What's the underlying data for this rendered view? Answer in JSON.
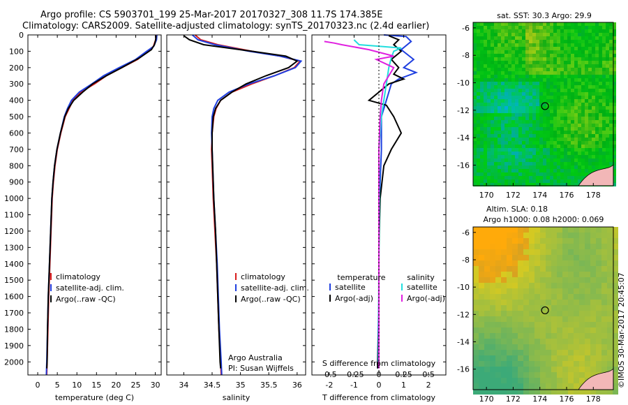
{
  "header": {
    "line1": "Argo profile: CS 5903701_199 25-Mar-2017 20170327_308 11.7S 174.385E",
    "line2": "Climatology: CARS2009. Satellite-adjusted climatology: synTS_20170323.nc (2.4d earlier)"
  },
  "stamp": "©IMOS 30-Mar-2017 20:45:07",
  "colors": {
    "climatology": "#d81b1b",
    "satellite": "#1f3fe0",
    "argo": "#000000",
    "sal_satellite": "#22dede",
    "sal_argo": "#e020e0"
  },
  "chart_data": [
    {
      "type": "line",
      "xlabel": "temperature (deg C)",
      "ylabel": "",
      "xlim": [
        -2.5,
        31.5
      ],
      "ylim": [
        2080,
        0
      ],
      "xticks": [
        0,
        5,
        10,
        15,
        20,
        25,
        30
      ],
      "yticks": [
        0,
        100,
        200,
        300,
        400,
        500,
        600,
        700,
        800,
        900,
        1000,
        1100,
        1200,
        1300,
        1400,
        1500,
        1600,
        1700,
        1800,
        1900,
        2000
      ],
      "legend": [
        "climatology",
        "satellite-adj. clim.",
        "Argo(..raw -QC)"
      ],
      "legend_position": "bottom-center",
      "series": [
        {
          "name": "climatology",
          "color": "#d81b1b",
          "points": [
            [
              30.2,
              0
            ],
            [
              30.1,
              30
            ],
            [
              29.5,
              70
            ],
            [
              28,
              100
            ],
            [
              25.5,
              150
            ],
            [
              21.5,
              200
            ],
            [
              17.5,
              250
            ],
            [
              14.5,
              300
            ],
            [
              11,
              350
            ],
            [
              9,
              400
            ],
            [
              8,
              450
            ],
            [
              7,
              500
            ],
            [
              5.9,
              600
            ],
            [
              5,
              700
            ],
            [
              4.4,
              800
            ],
            [
              4,
              900
            ],
            [
              3.7,
              1000
            ],
            [
              3.4,
              1200
            ],
            [
              3.1,
              1400
            ],
            [
              2.8,
              1600
            ],
            [
              2.6,
              1800
            ],
            [
              2.4,
              2000
            ],
            [
              2.3,
              2080
            ]
          ]
        },
        {
          "name": "satellite-adj. clim.",
          "color": "#1f3fe0",
          "points": [
            [
              30.4,
              0
            ],
            [
              30.3,
              30
            ],
            [
              29.6,
              70
            ],
            [
              27.8,
              100
            ],
            [
              25,
              150
            ],
            [
              20.8,
              200
            ],
            [
              16.8,
              250
            ],
            [
              13.8,
              300
            ],
            [
              10.6,
              350
            ],
            [
              8.6,
              400
            ],
            [
              7.6,
              450
            ],
            [
              6.8,
              500
            ],
            [
              5.8,
              600
            ],
            [
              4.9,
              700
            ],
            [
              4.3,
              800
            ],
            [
              3.9,
              900
            ],
            [
              3.6,
              1000
            ],
            [
              3.3,
              1200
            ],
            [
              3,
              1400
            ],
            [
              2.7,
              1600
            ],
            [
              2.5,
              1800
            ],
            [
              2.3,
              2000
            ],
            [
              2.2,
              2080
            ]
          ]
        },
        {
          "name": "Argo(..raw -QC)",
          "color": "#000000",
          "points": [
            [
              30.2,
              5
            ],
            [
              30.1,
              30
            ],
            [
              29.8,
              60
            ],
            [
              29,
              90
            ],
            [
              26,
              140
            ],
            [
              21.5,
              200
            ],
            [
              17.5,
              250
            ],
            [
              14,
              300
            ],
            [
              11.5,
              350
            ],
            [
              9.2,
              400
            ],
            [
              7.8,
              450
            ],
            [
              6.9,
              500
            ],
            [
              5.8,
              600
            ],
            [
              4.9,
              700
            ],
            [
              4.3,
              800
            ],
            [
              3.9,
              900
            ],
            [
              3.6,
              1000
            ],
            [
              3.3,
              1200
            ],
            [
              3,
              1400
            ],
            [
              2.7,
              1600
            ],
            [
              2.5,
              1800
            ],
            [
              2.4,
              2000
            ],
            [
              2.3,
              2040
            ]
          ]
        }
      ]
    },
    {
      "type": "line",
      "xlabel": "salinity",
      "ylabel": "",
      "xlim": [
        33.7,
        36.15
      ],
      "ylim": [
        2080,
        0
      ],
      "xticks": [
        34,
        34.5,
        35,
        35.5,
        36
      ],
      "xticklabels": [
        "34",
        "34.5",
        "35",
        "35.5",
        "36"
      ],
      "legend": [
        "climatology",
        "satellite-adj. clim.",
        "Argo(..raw -QC)"
      ],
      "legend_position": "bottom-right",
      "annotation": [
        "Argo Australia",
        "PI: Susan Wijffels"
      ],
      "series": [
        {
          "name": "climatology",
          "color": "#d81b1b",
          "points": [
            [
              34.2,
              0
            ],
            [
              34.3,
              30
            ],
            [
              34.6,
              60
            ],
            [
              35.2,
              100
            ],
            [
              35.7,
              130
            ],
            [
              36.05,
              160
            ],
            [
              35.95,
              200
            ],
            [
              35.6,
              250
            ],
            [
              35.2,
              300
            ],
            [
              34.85,
              350
            ],
            [
              34.65,
              400
            ],
            [
              34.57,
              450
            ],
            [
              34.53,
              500
            ],
            [
              34.5,
              600
            ],
            [
              34.49,
              700
            ],
            [
              34.5,
              800
            ],
            [
              34.52,
              1000
            ],
            [
              34.55,
              1200
            ],
            [
              34.58,
              1400
            ],
            [
              34.6,
              1600
            ],
            [
              34.62,
              1800
            ],
            [
              34.65,
              2000
            ],
            [
              34.66,
              2080
            ]
          ]
        },
        {
          "name": "satellite-adj. clim.",
          "color": "#1f3fe0",
          "points": [
            [
              34.15,
              0
            ],
            [
              34.25,
              30
            ],
            [
              34.55,
              60
            ],
            [
              35.15,
              100
            ],
            [
              35.7,
              130
            ],
            [
              36.07,
              160
            ],
            [
              35.97,
              200
            ],
            [
              35.6,
              250
            ],
            [
              35.15,
              300
            ],
            [
              34.8,
              350
            ],
            [
              34.6,
              400
            ],
            [
              34.53,
              450
            ],
            [
              34.5,
              500
            ],
            [
              34.49,
              600
            ],
            [
              34.5,
              700
            ],
            [
              34.51,
              800
            ],
            [
              34.53,
              1000
            ],
            [
              34.56,
              1200
            ],
            [
              34.59,
              1400
            ],
            [
              34.61,
              1600
            ],
            [
              34.63,
              1800
            ],
            [
              34.66,
              2000
            ],
            [
              34.67,
              2080
            ]
          ]
        },
        {
          "name": "Argo(..raw -QC)",
          "color": "#000000",
          "points": [
            [
              34,
              5
            ],
            [
              34.1,
              30
            ],
            [
              34.35,
              60
            ],
            [
              35.2,
              100
            ],
            [
              35.8,
              130
            ],
            [
              36,
              160
            ],
            [
              35.85,
              200
            ],
            [
              35.45,
              250
            ],
            [
              35.1,
              300
            ],
            [
              34.85,
              350
            ],
            [
              34.65,
              400
            ],
            [
              34.56,
              450
            ],
            [
              34.52,
              500
            ],
            [
              34.5,
              600
            ],
            [
              34.5,
              700
            ],
            [
              34.51,
              800
            ],
            [
              34.53,
              1000
            ],
            [
              34.56,
              1200
            ],
            [
              34.58,
              1400
            ],
            [
              34.6,
              1600
            ],
            [
              34.62,
              1800
            ],
            [
              34.64,
              2000
            ],
            [
              34.65,
              2040
            ]
          ]
        }
      ]
    },
    {
      "type": "line",
      "xlabel": "T difference from climatology",
      "top_label": "S difference from climatology",
      "xlim": [
        -2.7,
        2.7
      ],
      "ylim": [
        2080,
        0
      ],
      "xticks": [
        -2,
        -1,
        0,
        1,
        2
      ],
      "top_axis": {
        "ticks": [
          -2,
          -1,
          0,
          1,
          2
        ],
        "ticklabels": [
          "-0.5",
          "-0.25",
          "0",
          "0.25",
          "0.5"
        ]
      },
      "legend": {
        "temperature": [
          "satellite",
          "Argo(-adj)"
        ],
        "salinity": [
          "satellite",
          "Argo(-adj)"
        ]
      },
      "legend_position": "bottom",
      "series": [
        {
          "name": "temperature satellite",
          "color": "#1f3fe0",
          "points": [
            [
              0.2,
              0
            ],
            [
              1.1,
              10
            ],
            [
              1.3,
              40
            ],
            [
              0.9,
              90
            ],
            [
              1.4,
              150
            ],
            [
              1.0,
              200
            ],
            [
              1.5,
              230
            ],
            [
              0.8,
              270
            ],
            [
              0.5,
              300
            ],
            [
              0.3,
              400
            ],
            [
              0.1,
              500
            ],
            [
              0.1,
              700
            ],
            [
              0.05,
              900
            ],
            [
              0,
              1200
            ],
            [
              0,
              1600
            ],
            [
              -0.05,
              2000
            ],
            [
              -0.05,
              2040
            ]
          ]
        },
        {
          "name": "temperature Argo(-adj)",
          "color": "#000000",
          "points": [
            [
              0.4,
              5
            ],
            [
              0.8,
              30
            ],
            [
              0.6,
              60
            ],
            [
              0.9,
              100
            ],
            [
              0.5,
              150
            ],
            [
              0.8,
              200
            ],
            [
              0.6,
              240
            ],
            [
              1.0,
              270
            ],
            [
              0.4,
              300
            ],
            [
              -0.4,
              400
            ],
            [
              0.3,
              430
            ],
            [
              0.6,
              500
            ],
            [
              0.9,
              600
            ],
            [
              0.5,
              700
            ],
            [
              0.2,
              800
            ],
            [
              0.05,
              1000
            ],
            [
              0,
              1300
            ],
            [
              0,
              1700
            ],
            [
              -0.05,
              2040
            ]
          ]
        },
        {
          "name": "salinity satellite",
          "color": "#22dede",
          "points": [
            [
              -1.0,
              30
            ],
            [
              -0.8,
              60
            ],
            [
              0.9,
              80
            ],
            [
              0.6,
              100
            ],
            [
              0.5,
              140
            ],
            [
              0.4,
              200
            ],
            [
              0.3,
              300
            ],
            [
              0.2,
              400
            ],
            [
              0.1,
              500
            ],
            [
              0.05,
              600
            ],
            [
              0,
              700
            ],
            [
              0.02,
              1000
            ],
            [
              0,
              1400
            ],
            [
              -0.02,
              2000
            ]
          ]
        },
        {
          "name": "salinity Argo(-adj)",
          "color": "#e020e0",
          "points": [
            [
              -2.2,
              40
            ],
            [
              -1.8,
              50
            ],
            [
              -1.5,
              60
            ],
            [
              -0.4,
              90
            ],
            [
              0.6,
              130
            ],
            [
              -0.1,
              150
            ],
            [
              0.6,
              200
            ],
            [
              0.2,
              300
            ],
            [
              0.1,
              400
            ],
            [
              0.05,
              500
            ],
            [
              0,
              700
            ],
            [
              0,
              1000
            ],
            [
              0,
              1500
            ],
            [
              0,
              2000
            ],
            [
              0,
              2040
            ]
          ]
        }
      ]
    },
    {
      "type": "heatmap",
      "title": "sat. SST: 30.3  Argo: 29.9",
      "xlim": [
        169,
        179.5
      ],
      "ylim": [
        -17.5,
        -5.6
      ],
      "xticks": [
        170,
        172,
        174,
        176,
        178
      ],
      "yticks": [
        -6,
        -8,
        -10,
        -12,
        -14,
        -16
      ],
      "marker": {
        "lon": 174.385,
        "lat": -11.7
      }
    },
    {
      "type": "heatmap",
      "title": "Altim. SLA: 0.18",
      "subtitle": "Argo h1000: 0.08 h2000: 0.069",
      "xlim": [
        169,
        179.5
      ],
      "ylim": [
        -17.5,
        -5.6
      ],
      "xticks": [
        170,
        172,
        174,
        176,
        178
      ],
      "yticks": [
        -6,
        -8,
        -10,
        -12,
        -14,
        -16
      ],
      "marker": {
        "lon": 174.385,
        "lat": -11.7
      }
    }
  ]
}
